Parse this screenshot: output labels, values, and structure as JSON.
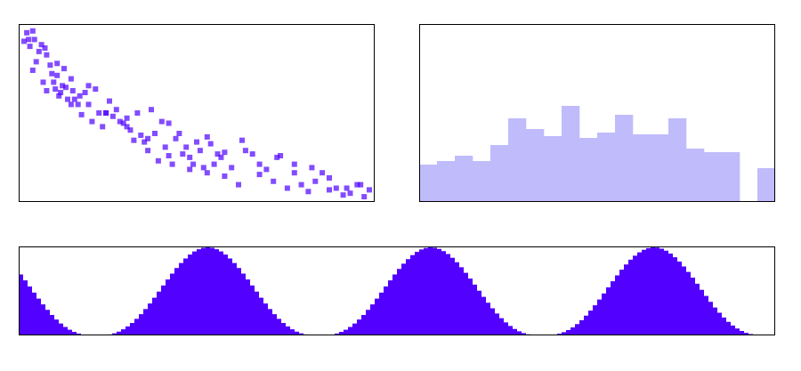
{
  "colors": {
    "scatter_point": "#4f00ff",
    "histogram_bar": "#c0bbfb",
    "area_fill": "#5200ff",
    "frame": "#000000",
    "background": "#ffffff"
  },
  "chart_data": [
    {
      "type": "scatter",
      "title": "",
      "xlabel": "",
      "ylabel": "",
      "xlim": [
        0,
        1
      ],
      "ylim": [
        0,
        1
      ],
      "grid": false,
      "marker": "square",
      "alpha": 0.7,
      "series": [
        {
          "x": [
            0.005,
            0.013,
            0.018,
            0.022,
            0.03,
            0.035,
            0.04,
            0.048,
            0.055,
            0.06,
            0.065,
            0.07,
            0.08,
            0.085,
            0.09,
            0.095,
            0.1,
            0.105,
            0.11,
            0.115,
            0.12,
            0.125,
            0.13,
            0.14,
            0.145,
            0.15,
            0.16,
            0.165,
            0.17,
            0.18,
            0.19,
            0.2,
            0.21,
            0.22,
            0.23,
            0.24,
            0.25,
            0.26,
            0.27,
            0.28,
            0.29,
            0.3,
            0.31,
            0.32,
            0.33,
            0.34,
            0.35,
            0.36,
            0.37,
            0.38,
            0.39,
            0.4,
            0.41,
            0.42,
            0.43,
            0.44,
            0.45,
            0.46,
            0.47,
            0.48,
            0.49,
            0.5,
            0.51,
            0.52,
            0.53,
            0.54,
            0.55,
            0.56,
            0.57,
            0.58,
            0.6,
            0.62,
            0.64,
            0.66,
            0.68,
            0.7,
            0.72,
            0.74,
            0.76,
            0.78,
            0.8,
            0.82,
            0.84,
            0.86,
            0.88,
            0.9,
            0.92,
            0.94,
            0.96,
            0.98,
            0.995,
            0.03,
            0.07,
            0.1,
            0.14,
            0.19,
            0.24,
            0.3,
            0.36,
            0.42,
            0.48,
            0.53,
            0.58,
            0.63,
            0.68,
            0.73,
            0.78,
            0.83,
            0.88,
            0.93,
            0.97
          ],
          "y": [
            0.92,
            0.97,
            0.93,
            0.89,
            0.98,
            0.93,
            0.8,
            0.86,
            0.9,
            0.68,
            0.88,
            0.84,
            0.78,
            0.73,
            0.68,
            0.64,
            0.72,
            0.6,
            0.62,
            0.66,
            0.76,
            0.65,
            0.58,
            0.7,
            0.63,
            0.58,
            0.55,
            0.6,
            0.49,
            0.62,
            0.55,
            0.45,
            0.64,
            0.5,
            0.42,
            0.5,
            0.57,
            0.48,
            0.52,
            0.45,
            0.44,
            0.47,
            0.4,
            0.34,
            0.5,
            0.37,
            0.33,
            0.28,
            0.52,
            0.38,
            0.22,
            0.45,
            0.3,
            0.25,
            0.2,
            0.35,
            0.38,
            0.26,
            0.3,
            0.17,
            0.2,
            0.33,
            0.28,
            0.18,
            0.15,
            0.32,
            0.2,
            0.26,
            0.24,
            0.13,
            0.18,
            0.08,
            0.28,
            0.26,
            0.14,
            0.17,
            0.1,
            0.25,
            0.06,
            0.2,
            0.08,
            0.04,
            0.1,
            0.15,
            0.05,
            0.06,
            0.02,
            0.03,
            0.08,
            0.01,
            0.05,
            0.75,
            0.63,
            0.79,
            0.55,
            0.66,
            0.5,
            0.42,
            0.35,
            0.44,
            0.24,
            0.36,
            0.27,
            0.34,
            0.2,
            0.24,
            0.15,
            0.18,
            0.12,
            0.06,
            0.08
          ]
        }
      ]
    },
    {
      "type": "bar",
      "subtype": "histogram",
      "title": "",
      "xlabel": "",
      "ylabel": "",
      "ylim": [
        0,
        1
      ],
      "grid": false,
      "values": [
        0.21,
        0.23,
        0.26,
        0.23,
        0.32,
        0.47,
        0.41,
        0.37,
        0.54,
        0.36,
        0.39,
        0.49,
        0.38,
        0.38,
        0.47,
        0.3,
        0.28,
        0.28,
        0.0,
        0.19
      ]
    },
    {
      "type": "area",
      "subtype": "step",
      "title": "",
      "xlabel": "",
      "ylabel": "",
      "xlim": [
        0,
        1
      ],
      "ylim": [
        0,
        1
      ],
      "grid": false,
      "cycles": 3.4,
      "peaks_x": [
        0.25,
        0.545,
        0.84
      ],
      "troughs_x": [
        0.105,
        0.4,
        0.695
      ],
      "y_start": 0.74,
      "y_min": 0.0,
      "y_max": 1.0,
      "steps": 170
    }
  ]
}
